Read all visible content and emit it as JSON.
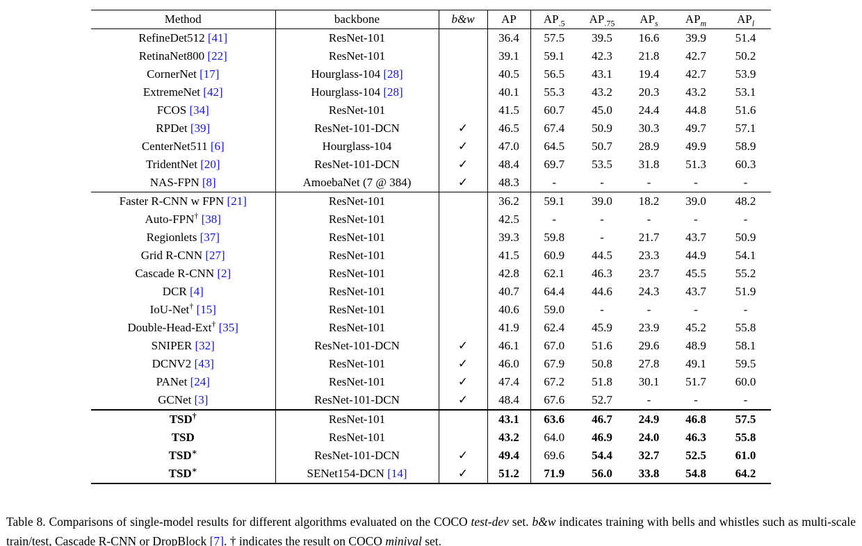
{
  "colors": {
    "citation": "#1414DC",
    "text": "#000000",
    "background": "#ffffff",
    "rule": "#000000"
  },
  "table": {
    "checkmark": "✓",
    "dash": "-",
    "columns": [
      {
        "label": "Method"
      },
      {
        "label": "backbone"
      },
      {
        "label": "b&w",
        "italic": true
      },
      {
        "label": "AP"
      },
      {
        "label": "AP",
        "sub": ".5"
      },
      {
        "label": "AP",
        "sub": ".75"
      },
      {
        "label": "AP",
        "sub": "s",
        "sub_italic": true
      },
      {
        "label": "AP",
        "sub": "m",
        "sub_italic": true
      },
      {
        "label": "AP",
        "sub": "l",
        "sub_italic": true
      }
    ],
    "groups": [
      {
        "rows": [
          {
            "method": "RefineDet512",
            "method_cite": "[41]",
            "backbone": "ResNet-101",
            "bw": false,
            "values": [
              "36.4",
              "57.5",
              "39.5",
              "16.6",
              "39.9",
              "51.4"
            ]
          },
          {
            "method": "RetinaNet800",
            "method_cite": "[22]",
            "backbone": "ResNet-101",
            "bw": false,
            "values": [
              "39.1",
              "59.1",
              "42.3",
              "21.8",
              "42.7",
              "50.2"
            ]
          },
          {
            "method": "CornerNet",
            "method_cite": "[17]",
            "backbone": "Hourglass-104",
            "backbone_cite": "[28]",
            "bw": false,
            "values": [
              "40.5",
              "56.5",
              "43.1",
              "19.4",
              "42.7",
              "53.9"
            ]
          },
          {
            "method": "ExtremeNet",
            "method_cite": "[42]",
            "backbone": "Hourglass-104",
            "backbone_cite": "[28]",
            "bw": false,
            "values": [
              "40.1",
              "55.3",
              "43.2",
              "20.3",
              "43.2",
              "53.1"
            ]
          },
          {
            "method": "FCOS",
            "method_cite": "[34]",
            "backbone": "ResNet-101",
            "bw": false,
            "values": [
              "41.5",
              "60.7",
              "45.0",
              "24.4",
              "44.8",
              "51.6"
            ]
          },
          {
            "method": "RPDet",
            "method_cite": "[39]",
            "backbone": "ResNet-101-DCN",
            "bw": true,
            "values": [
              "46.5",
              "67.4",
              "50.9",
              "30.3",
              "49.7",
              "57.1"
            ]
          },
          {
            "method": "CenterNet511",
            "method_cite": "[6]",
            "backbone": "Hourglass-104",
            "bw": true,
            "values": [
              "47.0",
              "64.5",
              "50.7",
              "28.9",
              "49.9",
              "58.9"
            ]
          },
          {
            "method": "TridentNet",
            "method_cite": "[20]",
            "backbone": "ResNet-101-DCN",
            "bw": true,
            "values": [
              "48.4",
              "69.7",
              "53.5",
              "31.8",
              "51.3",
              "60.3"
            ]
          },
          {
            "method": "NAS-FPN",
            "method_cite": "[8]",
            "backbone": "AmoebaNet (7 @ 384)",
            "bw": true,
            "values": [
              "48.3",
              "-",
              "-",
              "-",
              "-",
              "-"
            ]
          }
        ]
      },
      {
        "rows": [
          {
            "method": "Faster R-CNN w FPN",
            "method_cite": "[21]",
            "backbone": "ResNet-101",
            "bw": false,
            "values": [
              "36.2",
              "59.1",
              "39.0",
              "18.2",
              "39.0",
              "48.2"
            ]
          },
          {
            "method": "Auto-FPN",
            "method_sup": "†",
            "method_cite": "[38]",
            "backbone": "ResNet-101",
            "bw": false,
            "values": [
              "42.5",
              "-",
              "-",
              "-",
              "-",
              "-"
            ]
          },
          {
            "method": "Regionlets",
            "method_cite": "[37]",
            "backbone": "ResNet-101",
            "bw": false,
            "values": [
              "39.3",
              "59.8",
              "-",
              "21.7",
              "43.7",
              "50.9"
            ]
          },
          {
            "method": "Grid R-CNN",
            "method_cite": "[27]",
            "backbone": "ResNet-101",
            "bw": false,
            "values": [
              "41.5",
              "60.9",
              "44.5",
              "23.3",
              "44.9",
              "54.1"
            ]
          },
          {
            "method": "Cascade R-CNN",
            "method_cite": "[2]",
            "backbone": "ResNet-101",
            "bw": false,
            "values": [
              "42.8",
              "62.1",
              "46.3",
              "23.7",
              "45.5",
              "55.2"
            ]
          },
          {
            "method": "DCR",
            "method_cite": "[4]",
            "backbone": "ResNet-101",
            "bw": false,
            "values": [
              "40.7",
              "64.4",
              "44.6",
              "24.3",
              "43.7",
              "51.9"
            ]
          },
          {
            "method": "IoU-Net",
            "method_sup": "†",
            "method_cite": "[15]",
            "backbone": "ResNet-101",
            "bw": false,
            "values": [
              "40.6",
              "59.0",
              "-",
              "-",
              "-",
              "-"
            ]
          },
          {
            "method": "Double-Head-Ext",
            "method_sup": "†",
            "method_cite": "[35]",
            "backbone": "ResNet-101",
            "bw": false,
            "values": [
              "41.9",
              "62.4",
              "45.9",
              "23.9",
              "45.2",
              "55.8"
            ]
          },
          {
            "method": "SNIPER",
            "method_cite": "[32]",
            "backbone": "ResNet-101-DCN",
            "bw": true,
            "values": [
              "46.1",
              "67.0",
              "51.6",
              "29.6",
              "48.9",
              "58.1"
            ]
          },
          {
            "method": "DCNV2",
            "method_cite": "[43]",
            "backbone": "ResNet-101",
            "bw": true,
            "values": [
              "46.0",
              "67.9",
              "50.8",
              "27.8",
              "49.1",
              "59.5"
            ]
          },
          {
            "method": "PANet",
            "method_cite": "[24]",
            "backbone": "ResNet-101",
            "bw": true,
            "values": [
              "47.4",
              "67.2",
              "51.8",
              "30.1",
              "51.7",
              "60.0"
            ]
          },
          {
            "method": "GCNet",
            "method_cite": "[3]",
            "backbone": "ResNet-101-DCN",
            "bw": true,
            "values": [
              "48.4",
              "67.6",
              "52.7",
              "-",
              "-",
              "-"
            ]
          }
        ]
      },
      {
        "rows": [
          {
            "method": "TSD",
            "method_sup": "†",
            "method_bold": true,
            "backbone": "ResNet-101",
            "bw": false,
            "values": [
              "43.1",
              "63.6",
              "46.7",
              "24.9",
              "46.8",
              "57.5"
            ],
            "bold": [
              1,
              1,
              1,
              1,
              1,
              1
            ]
          },
          {
            "method": "TSD",
            "method_bold": true,
            "backbone": "ResNet-101",
            "bw": false,
            "values": [
              "43.2",
              "64.0",
              "46.9",
              "24.0",
              "46.3",
              "55.8"
            ],
            "bold": [
              1,
              0,
              1,
              1,
              1,
              1
            ]
          },
          {
            "method": "TSD",
            "method_sup": "∗",
            "method_bold": true,
            "backbone": "ResNet-101-DCN",
            "bw": true,
            "values": [
              "49.4",
              "69.6",
              "54.4",
              "32.7",
              "52.5",
              "61.0"
            ],
            "bold": [
              1,
              0,
              1,
              1,
              1,
              1
            ]
          },
          {
            "method": "TSD",
            "method_sup": "∗",
            "method_bold": true,
            "backbone": "SENet154-DCN",
            "backbone_cite": "[14]",
            "bw": true,
            "values": [
              "51.2",
              "71.9",
              "56.0",
              "33.8",
              "54.8",
              "64.2"
            ],
            "bold": [
              1,
              1,
              1,
              1,
              1,
              1
            ]
          }
        ]
      }
    ]
  },
  "caption": {
    "segments": [
      {
        "t": "Table 8. Comparisons of single-model results for different algorithms evaluated on the COCO "
      },
      {
        "t": "test-dev",
        "i": true
      },
      {
        "t": " set.  "
      },
      {
        "t": "b&w",
        "i": true
      },
      {
        "t": " indicates training with bells and whistles such as multi-scale train/test, Cascade R-CNN or DropBlock "
      },
      {
        "t": "[7]",
        "c": true
      },
      {
        "t": ". † indicates the result on COCO "
      },
      {
        "t": "minival",
        "i": true
      },
      {
        "t": " set."
      }
    ]
  }
}
